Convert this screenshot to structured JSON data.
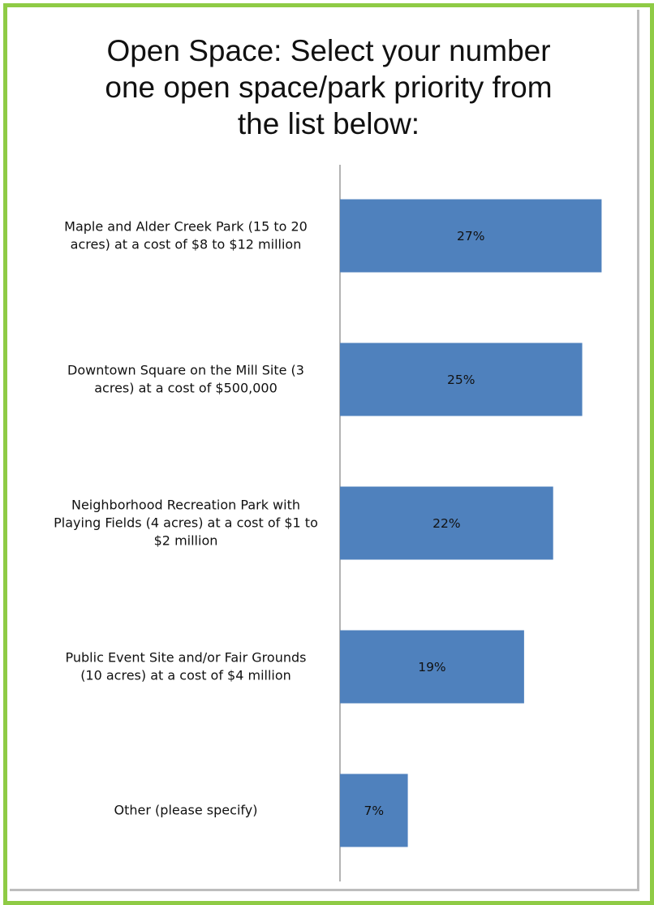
{
  "chart_data": {
    "type": "bar",
    "orientation": "horizontal",
    "title": "Open Space:  Select your number\none open space/park priority from\nthe list below:",
    "categories": [
      "Maple and Alder Creek Park (15 to 20\nacres) at a cost of $8 to $12 million",
      "Downtown Square on the Mill Site (3\nacres) at a cost of $500,000",
      "Neighborhood Recreation Park with\nPlaying Fields (4 acres) at a cost of $1 to\n$2 million",
      "Public Event Site and/or Fair Grounds\n(10 acres) at a cost of $4 million",
      "Other (please specify)"
    ],
    "values": [
      27,
      25,
      22,
      19,
      7
    ],
    "data_labels": [
      "27%",
      "25%",
      "22%",
      "19%",
      "7%"
    ],
    "unit": "%",
    "xlim": [
      0,
      27.3
    ],
    "grid": false,
    "legend": "none",
    "bar_color": "#4f81bd"
  }
}
